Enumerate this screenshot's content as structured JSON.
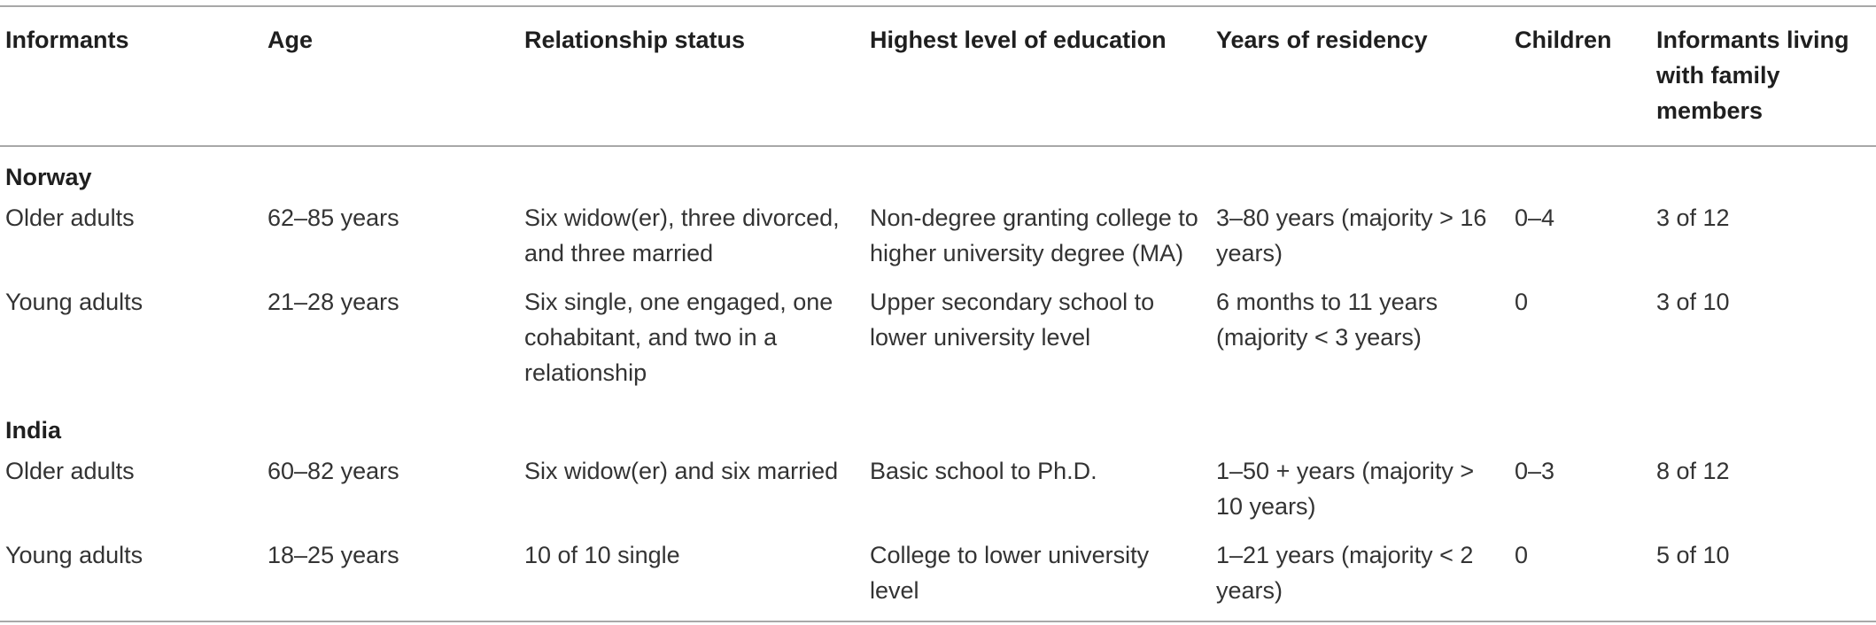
{
  "headers": [
    "Informants",
    "Age",
    "Relationship status",
    "Highest level of education",
    "Years of residency",
    "Children",
    "Informants living with family members"
  ],
  "groups": [
    {
      "name": "Norway",
      "rows": [
        {
          "informants": "Older adults",
          "age": "62–85 years",
          "relationship": "Six widow(er), three divorced, and three married",
          "education": "Non-degree granting college to higher university degree (MA)",
          "residency": "3–80 years (majority > 16 years)",
          "children": "0–4",
          "family": "3 of 12"
        },
        {
          "informants": "Young adults",
          "age": "21–28 years",
          "relationship": "Six single, one engaged, one cohabitant, and two in a relationship",
          "education": "Upper secondary school to lower university level",
          "residency": "6 months to 11 years (majority < 3 years)",
          "children": "0",
          "family": "3 of 10"
        }
      ]
    },
    {
      "name": "India",
      "rows": [
        {
          "informants": "Older adults",
          "age": "60–82 years",
          "relationship": "Six widow(er) and six married",
          "education": "Basic school to Ph.D.",
          "residency": "1–50 + years (majority > 10 years)",
          "children": "0–3",
          "family": "8 of 12"
        },
        {
          "informants": "Young adults",
          "age": "18–25 years",
          "relationship": "10 of 10 single",
          "education": "College to lower university level",
          "residency": "1–21 years (majority < 2 years)",
          "children": "0",
          "family": "5 of 10"
        }
      ]
    }
  ]
}
